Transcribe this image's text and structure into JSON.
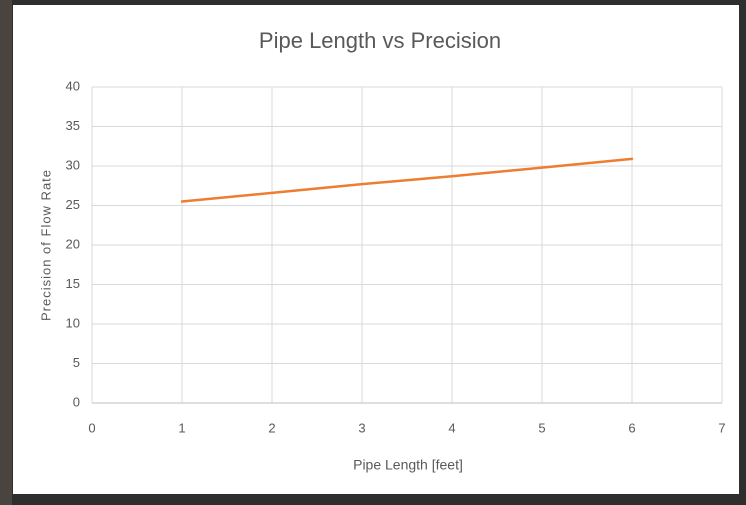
{
  "chart_data": {
    "type": "line",
    "title": "Pipe Length vs Precision",
    "x_label": "Pipe Length  [feet]",
    "y_label": "Precision of Flow Rate",
    "x": [
      1,
      2,
      3,
      4,
      5,
      6
    ],
    "values": [
      25.5,
      26.6,
      27.7,
      28.7,
      29.8,
      30.9
    ],
    "color": "#ed7d31",
    "xlim": [
      0,
      7
    ],
    "xticks": [
      0,
      1,
      2,
      3,
      4,
      5,
      6,
      7
    ],
    "ylim": [
      0,
      40
    ],
    "yticks": [
      0,
      5,
      10,
      15,
      20,
      25,
      30,
      35,
      40
    ],
    "grid": true
  }
}
